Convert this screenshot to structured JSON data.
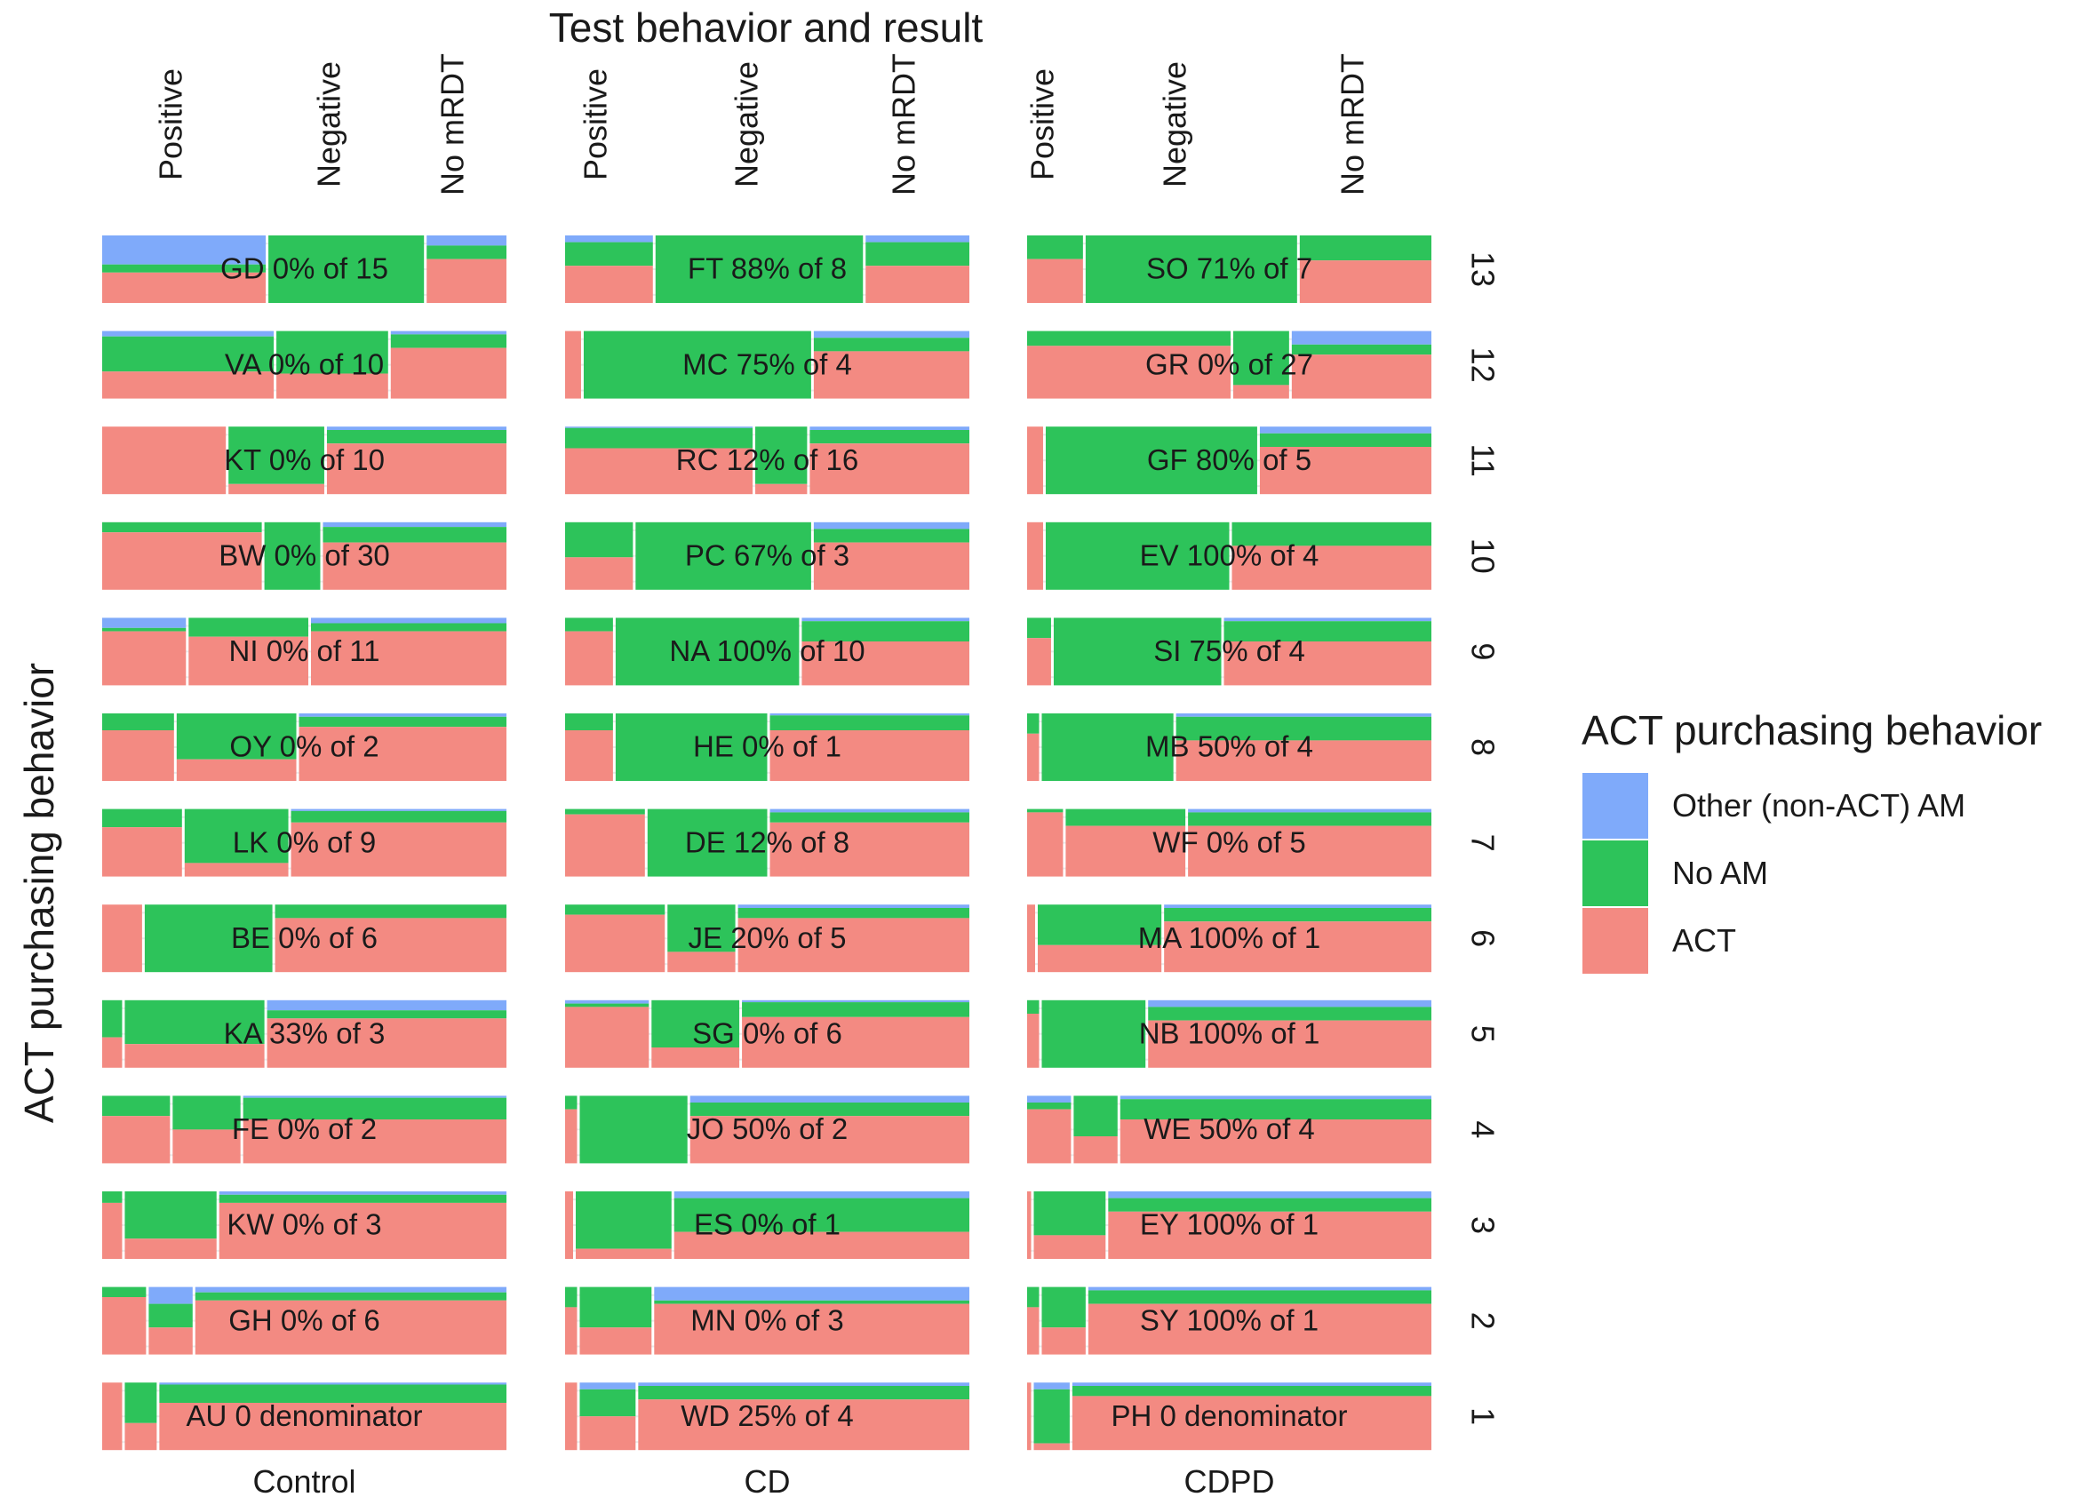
{
  "chart_data": {
    "type": "mosaic",
    "title": "Test behavior and result",
    "ylabel": "ACT purchasing behavior",
    "test_categories": [
      "Positive",
      "Negative",
      "No mRDT"
    ],
    "arms": [
      "Control",
      "CD",
      "CDPD"
    ],
    "row_labels": [
      "13",
      "12",
      "11",
      "10",
      "9",
      "8",
      "7",
      "6",
      "5",
      "4",
      "3",
      "2",
      "1"
    ],
    "legend": {
      "title": "ACT purchasing behavior",
      "items": [
        {
          "label": "Other (non-ACT) AM",
          "color": "#7FAAFA"
        },
        {
          "label": "No AM",
          "color": "#2DC35A"
        },
        {
          "label": "ACT",
          "color": "#F38A82"
        }
      ]
    },
    "panels": [
      [
        {
          "label": "GD 0% of 15",
          "cols": [
            [
              0.41,
              0.45,
              0.12,
              0.43
            ],
            [
              0.39,
              0.0,
              1.0,
              0.0
            ],
            [
              0.2,
              0.65,
              0.2,
              0.15
            ]
          ]
        },
        {
          "label": "VA 0% of 10",
          "cols": [
            [
              0.43,
              0.4,
              0.52,
              0.08
            ],
            [
              0.28,
              0.37,
              0.63,
              0.0
            ],
            [
              0.29,
              0.75,
              0.2,
              0.05
            ]
          ]
        },
        {
          "label": "KT 0% of 10",
          "cols": [
            [
              0.31,
              1.0,
              0.0,
              0.0
            ],
            [
              0.24,
              0.15,
              0.85,
              0.0
            ],
            [
              0.45,
              0.75,
              0.2,
              0.05
            ]
          ]
        },
        {
          "label": "BW 0% of 30",
          "cols": [
            [
              0.4,
              0.85,
              0.15,
              0.0
            ],
            [
              0.14,
              0.0,
              1.0,
              0.0
            ],
            [
              0.46,
              0.7,
              0.23,
              0.07
            ]
          ]
        },
        {
          "label": "NI 0% of 11",
          "cols": [
            [
              0.21,
              0.8,
              0.05,
              0.15
            ],
            [
              0.3,
              0.72,
              0.28,
              0.0
            ],
            [
              0.49,
              0.8,
              0.12,
              0.08
            ]
          ]
        },
        {
          "label": "OY 0% of 2",
          "cols": [
            [
              0.18,
              0.75,
              0.25,
              0.0
            ],
            [
              0.3,
              0.32,
              0.68,
              0.0
            ],
            [
              0.52,
              0.8,
              0.15,
              0.05
            ]
          ]
        },
        {
          "label": "LK 0% of 9",
          "cols": [
            [
              0.2,
              0.73,
              0.27,
              0.0
            ],
            [
              0.26,
              0.2,
              0.8,
              0.0
            ],
            [
              0.54,
              0.8,
              0.17,
              0.03
            ]
          ]
        },
        {
          "label": "BE 0% of 6",
          "cols": [
            [
              0.1,
              1.0,
              0.0,
              0.0
            ],
            [
              0.32,
              0.0,
              1.0,
              0.0
            ],
            [
              0.58,
              0.8,
              0.2,
              0.0
            ]
          ]
        },
        {
          "label": "KA 33% of 3",
          "cols": [
            [
              0.05,
              0.45,
              0.55,
              0.0
            ],
            [
              0.35,
              0.35,
              0.65,
              0.0
            ],
            [
              0.6,
              0.73,
              0.12,
              0.15
            ]
          ]
        },
        {
          "label": "FE 0% of 2",
          "cols": [
            [
              0.17,
              0.7,
              0.3,
              0.0
            ],
            [
              0.17,
              0.5,
              0.5,
              0.0
            ],
            [
              0.66,
              0.65,
              0.32,
              0.03
            ]
          ]
        },
        {
          "label": "KW 0% of 3",
          "cols": [
            [
              0.05,
              0.83,
              0.17,
              0.0
            ],
            [
              0.23,
              0.3,
              0.7,
              0.0
            ],
            [
              0.72,
              0.83,
              0.12,
              0.05
            ]
          ]
        },
        {
          "label": "GH 0% of 6",
          "cols": [
            [
              0.11,
              0.85,
              0.15,
              0.0
            ],
            [
              0.11,
              0.4,
              0.35,
              0.25
            ],
            [
              0.78,
              0.8,
              0.12,
              0.08
            ]
          ]
        },
        {
          "label": "AU 0 denominator",
          "cols": [
            [
              0.05,
              1.0,
              0.0,
              0.0
            ],
            [
              0.08,
              0.4,
              0.6,
              0.0
            ],
            [
              0.87,
              0.7,
              0.27,
              0.03
            ]
          ]
        }
      ],
      [
        {
          "label": "FT 88% of 8",
          "cols": [
            [
              0.22,
              0.55,
              0.35,
              0.1
            ],
            [
              0.52,
              0.0,
              1.0,
              0.0
            ],
            [
              0.26,
              0.55,
              0.35,
              0.1
            ]
          ]
        },
        {
          "label": "MC 75% of 4",
          "cols": [
            [
              0.04,
              1.0,
              0.0,
              0.0
            ],
            [
              0.57,
              0.0,
              1.0,
              0.0
            ],
            [
              0.39,
              0.7,
              0.2,
              0.1
            ]
          ]
        },
        {
          "label": "RC 12% of 16",
          "cols": [
            [
              0.47,
              0.68,
              0.3,
              0.02
            ],
            [
              0.13,
              0.15,
              0.85,
              0.0
            ],
            [
              0.4,
              0.75,
              0.2,
              0.05
            ]
          ]
        },
        {
          "label": "PC 67% of 3",
          "cols": [
            [
              0.17,
              0.48,
              0.52,
              0.0
            ],
            [
              0.44,
              0.0,
              1.0,
              0.0
            ],
            [
              0.39,
              0.7,
              0.2,
              0.1
            ]
          ]
        },
        {
          "label": "NA 100% of 10",
          "cols": [
            [
              0.12,
              0.8,
              0.2,
              0.0
            ],
            [
              0.46,
              0.0,
              1.0,
              0.0
            ],
            [
              0.42,
              0.65,
              0.3,
              0.05
            ]
          ]
        },
        {
          "label": "HE 0% of 1",
          "cols": [
            [
              0.12,
              0.75,
              0.25,
              0.0
            ],
            [
              0.38,
              0.0,
              1.0,
              0.0
            ],
            [
              0.5,
              0.75,
              0.22,
              0.03
            ]
          ]
        },
        {
          "label": "DE 12% of 8",
          "cols": [
            [
              0.2,
              0.92,
              0.08,
              0.0
            ],
            [
              0.3,
              0.0,
              1.0,
              0.0
            ],
            [
              0.5,
              0.8,
              0.15,
              0.05
            ]
          ]
        },
        {
          "label": "JE 20% of 5",
          "cols": [
            [
              0.25,
              0.85,
              0.15,
              0.0
            ],
            [
              0.17,
              0.3,
              0.7,
              0.0
            ],
            [
              0.58,
              0.8,
              0.15,
              0.05
            ]
          ]
        },
        {
          "label": "SG 0% of 6",
          "cols": [
            [
              0.21,
              0.9,
              0.05,
              0.05
            ],
            [
              0.22,
              0.3,
              0.7,
              0.0
            ],
            [
              0.57,
              0.75,
              0.22,
              0.03
            ]
          ]
        },
        {
          "label": "JO 50% of 2",
          "cols": [
            [
              0.03,
              0.8,
              0.2,
              0.0
            ],
            [
              0.27,
              0.0,
              1.0,
              0.0
            ],
            [
              0.7,
              0.7,
              0.2,
              0.1
            ]
          ]
        },
        {
          "label": "ES 0% of 1",
          "cols": [
            [
              0.02,
              1.0,
              0.0,
              0.0
            ],
            [
              0.24,
              0.15,
              0.85,
              0.0
            ],
            [
              0.74,
              0.4,
              0.5,
              0.1
            ]
          ]
        },
        {
          "label": "MN 0% of 3",
          "cols": [
            [
              0.03,
              0.7,
              0.3,
              0.0
            ],
            [
              0.18,
              0.4,
              0.6,
              0.0
            ],
            [
              0.79,
              0.75,
              0.05,
              0.2
            ]
          ]
        },
        {
          "label": "WD 25% of 4",
          "cols": [
            [
              0.03,
              1.0,
              0.0,
              0.0
            ],
            [
              0.14,
              0.5,
              0.4,
              0.1
            ],
            [
              0.83,
              0.75,
              0.2,
              0.05
            ]
          ]
        }
      ],
      [
        {
          "label": "SO 71% of 7",
          "cols": [
            [
              0.14,
              0.65,
              0.35,
              0.0
            ],
            [
              0.53,
              0.0,
              1.0,
              0.0
            ],
            [
              0.33,
              0.63,
              0.37,
              0.0
            ]
          ]
        },
        {
          "label": "GR 0% of 27",
          "cols": [
            [
              0.51,
              0.78,
              0.22,
              0.0
            ],
            [
              0.14,
              0.2,
              0.8,
              0.0
            ],
            [
              0.35,
              0.65,
              0.15,
              0.2
            ]
          ]
        },
        {
          "label": "GF 80% of 5",
          "cols": [
            [
              0.04,
              1.0,
              0.0,
              0.0
            ],
            [
              0.53,
              0.0,
              1.0,
              0.0
            ],
            [
              0.43,
              0.7,
              0.2,
              0.1
            ]
          ]
        },
        {
          "label": "EV 100% of 4",
          "cols": [
            [
              0.04,
              1.0,
              0.0,
              0.0
            ],
            [
              0.46,
              0.0,
              1.0,
              0.0
            ],
            [
              0.5,
              0.65,
              0.35,
              0.0
            ]
          ]
        },
        {
          "label": "SI 75% of 4",
          "cols": [
            [
              0.06,
              0.7,
              0.3,
              0.0
            ],
            [
              0.42,
              0.0,
              1.0,
              0.0
            ],
            [
              0.52,
              0.65,
              0.3,
              0.05
            ]
          ]
        },
        {
          "label": "MB 50% of 4",
          "cols": [
            [
              0.03,
              0.7,
              0.3,
              0.0
            ],
            [
              0.33,
              0.0,
              1.0,
              0.0
            ],
            [
              0.64,
              0.6,
              0.35,
              0.05
            ]
          ]
        },
        {
          "label": "WF 0% of 5",
          "cols": [
            [
              0.09,
              0.95,
              0.05,
              0.0
            ],
            [
              0.3,
              0.75,
              0.25,
              0.0
            ],
            [
              0.61,
              0.75,
              0.2,
              0.05
            ]
          ]
        },
        {
          "label": "MA 100% of 1",
          "cols": [
            [
              0.02,
              1.0,
              0.0,
              0.0
            ],
            [
              0.31,
              0.4,
              0.6,
              0.0
            ],
            [
              0.67,
              0.75,
              0.2,
              0.05
            ]
          ]
        },
        {
          "label": "NB 100% of 1",
          "cols": [
            [
              0.03,
              0.8,
              0.2,
              0.0
            ],
            [
              0.26,
              0.0,
              1.0,
              0.0
            ],
            [
              0.71,
              0.7,
              0.2,
              0.1
            ]
          ]
        },
        {
          "label": "WE 50% of 4",
          "cols": [
            [
              0.11,
              0.8,
              0.1,
              0.1
            ],
            [
              0.11,
              0.4,
              0.6,
              0.0
            ],
            [
              0.78,
              0.65,
              0.3,
              0.05
            ]
          ]
        },
        {
          "label": "EY 100% of 1",
          "cols": [
            [
              0.01,
              1.0,
              0.0,
              0.0
            ],
            [
              0.18,
              0.35,
              0.65,
              0.0
            ],
            [
              0.81,
              0.7,
              0.2,
              0.1
            ]
          ]
        },
        {
          "label": "SY 100% of 1",
          "cols": [
            [
              0.03,
              0.7,
              0.3,
              0.0
            ],
            [
              0.11,
              0.4,
              0.6,
              0.0
            ],
            [
              0.86,
              0.75,
              0.2,
              0.05
            ]
          ]
        },
        {
          "label": "PH 0 denominator",
          "cols": [
            [
              0.01,
              1.0,
              0.0,
              0.0
            ],
            [
              0.09,
              0.1,
              0.8,
              0.1
            ],
            [
              0.9,
              0.8,
              0.15,
              0.05
            ]
          ]
        }
      ]
    ]
  }
}
